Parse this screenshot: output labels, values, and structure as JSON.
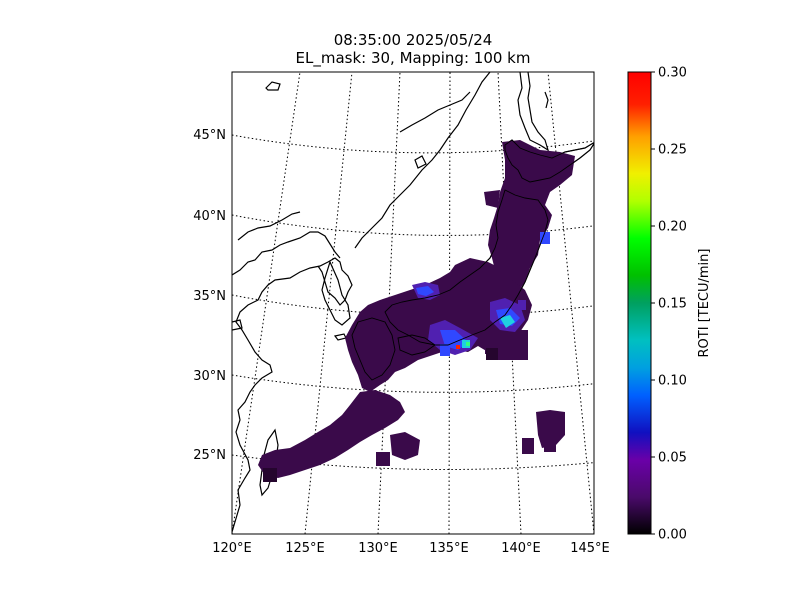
{
  "title_line1": "08:35:00 2025/05/24",
  "title_line2": "EL_mask: 30, Mapping: 100 km",
  "lat_labels": [
    "45°N",
    "40°N",
    "35°N",
    "30°N",
    "25°N"
  ],
  "lon_labels": [
    "120°E",
    "125°E",
    "130°E",
    "135°E",
    "140°E",
    "145°E"
  ],
  "colorbar": {
    "label": "ROTI [TECU/min]",
    "ticks": [
      "0.00",
      "0.05",
      "0.10",
      "0.15",
      "0.20",
      "0.25",
      "0.30"
    ],
    "min": 0.0,
    "max": 0.3,
    "colormap": "nipy_spectral"
  },
  "colors": {
    "background_cells": "#3a0a4a",
    "dark_cells": "#25052e",
    "elevated_blue": "#3048ff",
    "peak_cyan": "#20d0e0",
    "peak_red": "#ff2000"
  }
}
